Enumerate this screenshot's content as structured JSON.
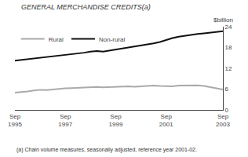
{
  "chart_data": {
    "type": "line",
    "title": "GENERAL MERCHANDISE CREDITS(a)",
    "footnote": "(a) Chain volume measures, seasonally adjusted, reference year 2001-02.",
    "ylabel": "$billion",
    "categories": [
      "Sep\n1995",
      null,
      null,
      null,
      null,
      null,
      null,
      null,
      "Sep\n1997",
      null,
      null,
      null,
      null,
      null,
      null,
      null,
      "Sep\n1999",
      null,
      null,
      null,
      null,
      null,
      null,
      null,
      "Sep\n2001",
      null,
      null,
      null,
      null,
      null,
      null,
      null,
      null,
      "Sep\n2003"
    ],
    "series": [
      {
        "name": "Rural",
        "color": "#aaaaaa",
        "values": [
          5.0,
          5.1,
          5.3,
          5.6,
          5.8,
          5.7,
          5.9,
          6.1,
          6.2,
          6.3,
          6.4,
          6.4,
          6.5,
          6.6,
          6.5,
          6.6,
          6.6,
          6.7,
          6.8,
          6.7,
          6.8,
          6.9,
          7.0,
          6.9,
          6.9,
          6.8,
          7.0,
          7.0,
          7.1,
          7.1,
          6.9,
          6.6,
          6.3,
          5.9
        ]
      },
      {
        "name": "Non-rural",
        "color": "#111111",
        "values": [
          14.2,
          14.4,
          14.6,
          14.9,
          15.1,
          15.3,
          15.5,
          15.7,
          15.9,
          16.1,
          16.3,
          16.5,
          16.8,
          17.0,
          16.8,
          17.1,
          17.3,
          17.6,
          17.9,
          18.2,
          18.5,
          18.8,
          19.2,
          19.6,
          20.2,
          20.7,
          21.1,
          21.4,
          21.6,
          21.9,
          22.1,
          22.3,
          22.5,
          22.7
        ]
      }
    ],
    "ylim": [
      0,
      24
    ],
    "yticks": [
      0,
      6,
      12,
      18,
      24
    ],
    "grid": false,
    "legend": "upper left"
  }
}
